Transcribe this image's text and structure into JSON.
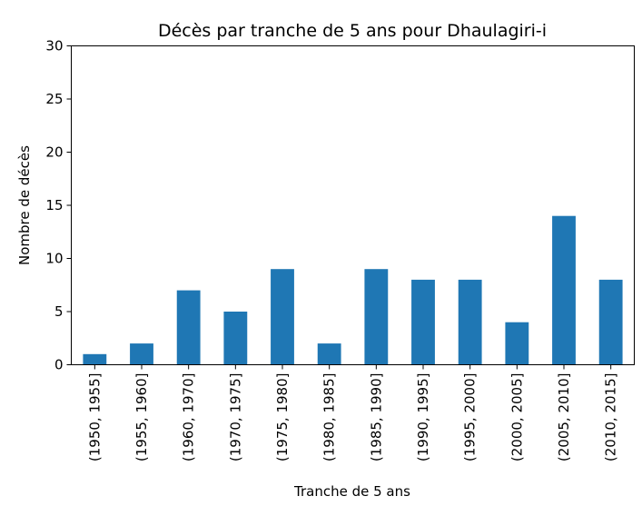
{
  "chart_data": {
    "type": "bar",
    "title": "Décès par tranche de 5 ans pour Dhaulagiri-i",
    "xlabel": "Tranche de 5 ans",
    "ylabel": "Nombre de décès",
    "categories": [
      "(1950, 1955]",
      "(1955, 1960]",
      "(1960, 1970]",
      "(1970, 1975]",
      "(1975, 1980]",
      "(1980, 1985]",
      "(1985, 1990]",
      "(1990, 1995]",
      "(1995, 2000]",
      "(2000, 2005]",
      "(2005, 2010]",
      "(2010, 2015]"
    ],
    "values": [
      1,
      2,
      7,
      5,
      9,
      2,
      9,
      8,
      8,
      4,
      14,
      8
    ],
    "ylim": [
      0,
      30
    ],
    "yticks": [
      0,
      5,
      10,
      15,
      20,
      25,
      30
    ],
    "bar_color": "#1f77b4",
    "grid": false,
    "legend": "none"
  }
}
